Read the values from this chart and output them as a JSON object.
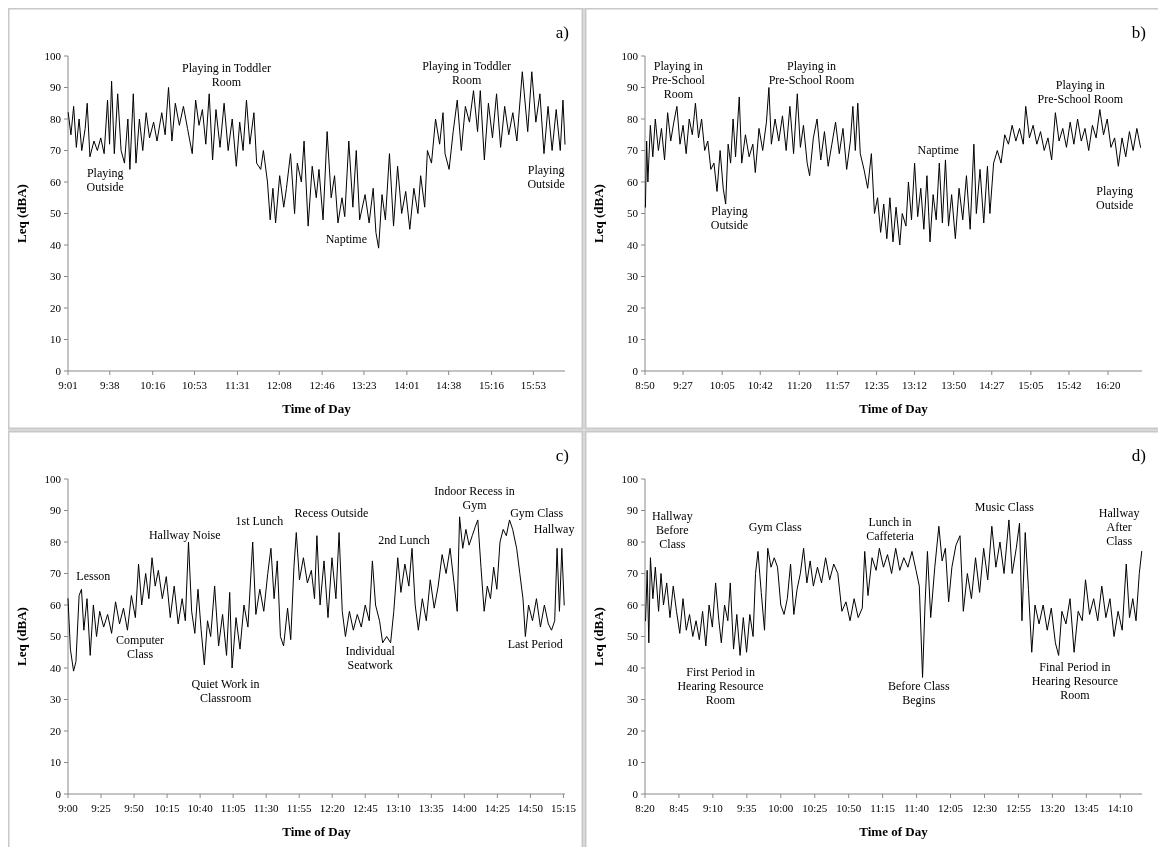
{
  "chart_data": [
    {
      "type": "line",
      "title": "a)",
      "xlabel": "Time of Day",
      "ylabel": "Leq (dBA)",
      "color": "#000000",
      "xlim": [
        9.0167,
        16.35
      ],
      "ylim": [
        0,
        100
      ],
      "yticks": [
        0,
        10,
        20,
        30,
        40,
        50,
        60,
        70,
        80,
        90,
        100
      ],
      "xticks": [
        {
          "value": 9.0167,
          "label": "9:01"
        },
        {
          "value": 9.6333,
          "label": "9:38"
        },
        {
          "value": 10.2667,
          "label": "10:16"
        },
        {
          "value": 10.8833,
          "label": "10:53"
        },
        {
          "value": 11.5167,
          "label": "11:31"
        },
        {
          "value": 12.1333,
          "label": "12:08"
        },
        {
          "value": 12.7667,
          "label": "12:46"
        },
        {
          "value": 13.3833,
          "label": "13:23"
        },
        {
          "value": 14.0167,
          "label": "14:01"
        },
        {
          "value": 14.6333,
          "label": "14:38"
        },
        {
          "value": 15.2667,
          "label": "15:16"
        },
        {
          "value": 15.8833,
          "label": "15:53"
        }
      ],
      "x": [
        9.02,
        9.06,
        9.1,
        9.14,
        9.18,
        9.22,
        9.27,
        9.3,
        9.34,
        9.4,
        9.45,
        9.5,
        9.55,
        9.6,
        9.63,
        9.66,
        9.7,
        9.75,
        9.8,
        9.85,
        9.9,
        9.93,
        9.98,
        10.02,
        10.07,
        10.12,
        10.17,
        10.22,
        10.28,
        10.33,
        10.4,
        10.45,
        10.5,
        10.55,
        10.6,
        10.66,
        10.72,
        10.78,
        10.85,
        10.9,
        10.95,
        11.0,
        11.05,
        11.1,
        11.15,
        11.2,
        11.26,
        11.32,
        11.38,
        11.44,
        11.5,
        11.55,
        11.6,
        11.65,
        11.7,
        11.76,
        11.8,
        11.86,
        11.9,
        11.96,
        12.0,
        12.04,
        12.08,
        12.14,
        12.2,
        12.24,
        12.3,
        12.36,
        12.4,
        12.46,
        12.5,
        12.56,
        12.62,
        12.68,
        12.72,
        12.78,
        12.84,
        12.9,
        12.95,
        13.0,
        13.06,
        13.1,
        13.16,
        13.22,
        13.27,
        13.32,
        13.4,
        13.46,
        13.52,
        13.56,
        13.6,
        13.65,
        13.7,
        13.76,
        13.82,
        13.88,
        13.94,
        14.0,
        14.06,
        14.12,
        14.18,
        14.22,
        14.28,
        14.32,
        14.38,
        14.44,
        14.5,
        14.55,
        14.58,
        14.64,
        14.7,
        14.76,
        14.82,
        14.88,
        14.94,
        15.0,
        15.06,
        15.1,
        15.16,
        15.22,
        15.28,
        15.34,
        15.4,
        15.46,
        15.52,
        15.58,
        15.64,
        15.72,
        15.8,
        15.86,
        15.92,
        15.98,
        16.04,
        16.1,
        16.16,
        16.22,
        16.28,
        16.32,
        16.35
      ],
      "values": [
        82,
        75,
        84,
        71,
        80,
        70,
        77,
        85,
        68,
        73,
        70,
        74,
        69,
        86,
        72,
        92,
        69,
        88,
        70,
        66,
        80,
        64,
        88,
        66,
        80,
        70,
        82,
        74,
        79,
        73,
        82,
        75,
        90,
        73,
        85,
        78,
        84,
        77,
        69,
        86,
        78,
        83,
        72,
        88,
        67,
        83,
        71,
        85,
        70,
        80,
        65,
        79,
        70,
        86,
        72,
        82,
        66,
        64,
        70,
        60,
        48,
        58,
        47,
        62,
        52,
        58,
        69,
        50,
        66,
        60,
        73,
        46,
        65,
        55,
        64,
        48,
        76,
        55,
        62,
        47,
        55,
        49,
        73,
        52,
        70,
        48,
        56,
        47,
        58,
        44,
        39,
        56,
        48,
        69,
        46,
        65,
        50,
        57,
        45,
        58,
        50,
        62,
        52,
        70,
        66,
        80,
        72,
        82,
        69,
        64,
        76,
        86,
        70,
        84,
        79,
        89,
        76,
        89,
        67,
        85,
        74,
        88,
        71,
        84,
        75,
        82,
        73,
        95,
        76,
        95,
        79,
        88,
        69,
        84,
        70,
        83,
        70,
        86,
        72
      ],
      "annotations": [
        "Playing\nOutside",
        "Playing in Toddler\nRoom",
        "Naptime",
        "Playing in Toddler\nRoom",
        "Playing\nOutside"
      ]
    },
    {
      "type": "line",
      "title": "b)",
      "xlabel": "Time of Day",
      "ylabel": "Leq (dBA)",
      "color": "#000000",
      "xlim": [
        8.8333,
        16.8833
      ],
      "ylim": [
        0,
        100
      ],
      "yticks": [
        0,
        10,
        20,
        30,
        40,
        50,
        60,
        70,
        80,
        90,
        100
      ],
      "xticks": [
        {
          "value": 8.8333,
          "label": "8:50"
        },
        {
          "value": 9.45,
          "label": "9:27"
        },
        {
          "value": 10.0833,
          "label": "10:05"
        },
        {
          "value": 10.7,
          "label": "10:42"
        },
        {
          "value": 11.3333,
          "label": "11:20"
        },
        {
          "value": 11.95,
          "label": "11:57"
        },
        {
          "value": 12.5833,
          "label": "12:35"
        },
        {
          "value": 13.2,
          "label": "13:12"
        },
        {
          "value": 13.8333,
          "label": "13:50"
        },
        {
          "value": 14.45,
          "label": "14:27"
        },
        {
          "value": 15.0833,
          "label": "15:05"
        },
        {
          "value": 15.7,
          "label": "15:42"
        },
        {
          "value": 16.3333,
          "label": "16:20"
        }
      ],
      "x": [
        8.84,
        8.86,
        8.88,
        8.92,
        8.96,
        9.0,
        9.05,
        9.1,
        9.15,
        9.2,
        9.25,
        9.3,
        9.35,
        9.4,
        9.45,
        9.5,
        9.55,
        9.6,
        9.65,
        9.7,
        9.75,
        9.8,
        9.85,
        9.9,
        9.95,
        10.0,
        10.05,
        10.1,
        10.14,
        10.18,
        10.22,
        10.26,
        10.3,
        10.36,
        10.4,
        10.46,
        10.52,
        10.58,
        10.62,
        10.68,
        10.74,
        10.8,
        10.84,
        10.88,
        10.94,
        11.0,
        11.06,
        11.12,
        11.18,
        11.24,
        11.3,
        11.35,
        11.4,
        11.46,
        11.5,
        11.56,
        11.62,
        11.68,
        11.74,
        11.8,
        11.86,
        11.92,
        11.98,
        12.04,
        12.1,
        12.16,
        12.2,
        12.24,
        12.28,
        12.32,
        12.38,
        12.44,
        12.5,
        12.55,
        12.6,
        12.65,
        12.7,
        12.75,
        12.8,
        12.85,
        12.9,
        12.96,
        13.0,
        13.06,
        13.1,
        13.15,
        13.2,
        13.25,
        13.3,
        13.35,
        13.4,
        13.45,
        13.5,
        13.55,
        13.6,
        13.65,
        13.7,
        13.75,
        13.8,
        13.86,
        13.92,
        13.98,
        14.04,
        14.1,
        14.16,
        14.2,
        14.26,
        14.32,
        14.38,
        14.42,
        14.48,
        14.54,
        14.6,
        14.66,
        14.72,
        14.78,
        14.84,
        14.9,
        14.96,
        15.0,
        15.06,
        15.12,
        15.18,
        15.24,
        15.3,
        15.36,
        15.42,
        15.48,
        15.54,
        15.6,
        15.66,
        15.72,
        15.78,
        15.84,
        15.9,
        15.96,
        16.02,
        16.08,
        16.14,
        16.2,
        16.26,
        16.32,
        16.38,
        16.44,
        16.5,
        16.56,
        16.62,
        16.68,
        16.74,
        16.8,
        16.86
      ],
      "values": [
        52,
        73,
        60,
        78,
        68,
        80,
        70,
        77,
        67,
        82,
        73,
        79,
        84,
        72,
        78,
        69,
        80,
        75,
        85,
        74,
        80,
        70,
        73,
        64,
        66,
        57,
        70,
        58,
        53,
        72,
        66,
        80,
        68,
        87,
        66,
        75,
        68,
        72,
        63,
        77,
        70,
        79,
        90,
        72,
        80,
        73,
        81,
        70,
        84,
        69,
        88,
        71,
        78,
        66,
        62,
        74,
        80,
        67,
        76,
        65,
        72,
        79,
        69,
        77,
        64,
        73,
        84,
        70,
        85,
        69,
        64,
        58,
        69,
        50,
        55,
        44,
        53,
        42,
        55,
        41,
        52,
        40,
        50,
        46,
        60,
        48,
        66,
        49,
        58,
        45,
        62,
        41,
        56,
        48,
        66,
        47,
        67,
        46,
        56,
        42,
        58,
        48,
        62,
        45,
        72,
        50,
        64,
        47,
        65,
        50,
        66,
        70,
        66,
        75,
        72,
        78,
        73,
        77,
        72,
        84,
        74,
        78,
        72,
        76,
        70,
        74,
        67,
        82,
        73,
        77,
        71,
        79,
        72,
        80,
        73,
        77,
        70,
        78,
        74,
        83,
        75,
        80,
        71,
        74,
        65,
        74,
        68,
        76,
        70,
        77,
        71
      ],
      "annotations": [
        "Playing in\nPre-School\nRoom",
        "Playing\nOutside",
        "Playing in\nPre-School Room",
        "Naptime",
        "Playing in\nPre-School Room",
        "Playing\nOutside"
      ]
    },
    {
      "type": "line",
      "title": "c)",
      "xlabel": "Time of Day",
      "ylabel": "Leq (dBA)",
      "color": "#000000",
      "xlim": [
        9,
        15.27
      ],
      "ylim": [
        0,
        100
      ],
      "yticks": [
        0,
        10,
        20,
        30,
        40,
        50,
        60,
        70,
        80,
        90,
        100
      ],
      "xticks": [
        {
          "value": 9,
          "label": "9:00"
        },
        {
          "value": 9.4167,
          "label": "9:25"
        },
        {
          "value": 9.8333,
          "label": "9:50"
        },
        {
          "value": 10.25,
          "label": "10:15"
        },
        {
          "value": 10.6667,
          "label": "10:40"
        },
        {
          "value": 11.0833,
          "label": "11:05"
        },
        {
          "value": 11.5,
          "label": "11:30"
        },
        {
          "value": 11.9167,
          "label": "11:55"
        },
        {
          "value": 12.3333,
          "label": "12:20"
        },
        {
          "value": 12.75,
          "label": "12:45"
        },
        {
          "value": 13.1667,
          "label": "13:10"
        },
        {
          "value": 13.5833,
          "label": "13:35"
        },
        {
          "value": 14,
          "label": "14:00"
        },
        {
          "value": 14.4167,
          "label": "14:25"
        },
        {
          "value": 14.8333,
          "label": "14:50"
        },
        {
          "value": 15.25,
          "label": "15:15"
        }
      ],
      "x": [
        9.0,
        9.03,
        9.07,
        9.1,
        9.14,
        9.17,
        9.2,
        9.24,
        9.28,
        9.32,
        9.36,
        9.4,
        9.45,
        9.5,
        9.55,
        9.6,
        9.65,
        9.7,
        9.75,
        9.8,
        9.85,
        9.89,
        9.93,
        9.98,
        10.02,
        10.06,
        10.1,
        10.14,
        10.19,
        10.24,
        10.29,
        10.34,
        10.39,
        10.44,
        10.48,
        10.52,
        10.56,
        10.6,
        10.64,
        10.68,
        10.72,
        10.76,
        10.8,
        10.85,
        10.9,
        10.95,
        11.0,
        11.04,
        11.07,
        11.12,
        11.17,
        11.22,
        11.27,
        11.33,
        11.37,
        11.42,
        11.47,
        11.52,
        11.56,
        11.6,
        11.64,
        11.68,
        11.72,
        11.77,
        11.81,
        11.85,
        11.88,
        11.92,
        11.97,
        12.02,
        12.07,
        12.11,
        12.14,
        12.18,
        12.23,
        12.28,
        12.33,
        12.38,
        12.42,
        12.46,
        12.5,
        12.55,
        12.6,
        12.65,
        12.7,
        12.75,
        12.8,
        12.84,
        12.88,
        12.93,
        12.97,
        13.02,
        13.07,
        13.11,
        13.16,
        13.2,
        13.25,
        13.3,
        13.34,
        13.38,
        13.42,
        13.47,
        13.52,
        13.57,
        13.62,
        13.67,
        13.72,
        13.77,
        13.82,
        13.87,
        13.91,
        13.94,
        13.98,
        14.02,
        14.06,
        14.1,
        14.14,
        14.17,
        14.21,
        14.25,
        14.29,
        14.33,
        14.37,
        14.41,
        14.45,
        14.49,
        14.53,
        14.57,
        14.61,
        14.66,
        14.7,
        14.74,
        14.77,
        14.81,
        14.86,
        14.91,
        14.96,
        15.01,
        15.06,
        15.1,
        15.14,
        15.17,
        15.2,
        15.23,
        15.26
      ],
      "values": [
        62,
        46,
        39,
        42,
        63,
        65,
        52,
        62,
        44,
        60,
        50,
        58,
        53,
        57,
        51,
        61,
        54,
        59,
        52,
        63,
        56,
        73,
        60,
        70,
        62,
        75,
        66,
        71,
        62,
        69,
        56,
        66,
        54,
        62,
        55,
        80,
        58,
        51,
        65,
        52,
        41,
        55,
        50,
        66,
        47,
        57,
        44,
        64,
        40,
        56,
        46,
        60,
        53,
        80,
        57,
        65,
        58,
        70,
        78,
        62,
        74,
        50,
        47,
        59,
        49,
        72,
        83,
        68,
        75,
        67,
        71,
        62,
        82,
        60,
        74,
        56,
        75,
        62,
        83,
        58,
        50,
        58,
        52,
        57,
        53,
        60,
        55,
        74,
        60,
        55,
        48,
        50,
        48,
        58,
        75,
        64,
        73,
        66,
        78,
        60,
        52,
        62,
        55,
        68,
        59,
        66,
        76,
        70,
        78,
        67,
        58,
        88,
        78,
        84,
        79,
        82,
        85,
        87,
        72,
        58,
        66,
        62,
        72,
        65,
        80,
        84,
        82,
        87,
        84,
        78,
        70,
        62,
        50,
        60,
        55,
        62,
        53,
        60,
        54,
        52,
        55,
        78,
        58,
        78,
        60
      ],
      "annotations": [
        "Lesson",
        "Computer\nClass",
        "Hallway Noise",
        "Quiet Work in\nClassroom",
        "1st Lunch",
        "Recess Outside",
        "Individual\nSeatwork",
        "2nd Lunch",
        "Indoor Recess in\nGym",
        "Gym Class",
        "Hallway",
        "Last Period"
      ]
    },
    {
      "type": "line",
      "title": "d)",
      "xlabel": "Time of Day",
      "ylabel": "Leq (dBA)",
      "color": "#000000",
      "xlim": [
        8.3333,
        14.4333
      ],
      "ylim": [
        0,
        100
      ],
      "yticks": [
        0,
        10,
        20,
        30,
        40,
        50,
        60,
        70,
        80,
        90,
        100
      ],
      "xticks": [
        {
          "value": 8.3333,
          "label": "8:20"
        },
        {
          "value": 8.75,
          "label": "8:45"
        },
        {
          "value": 9.1667,
          "label": "9:10"
        },
        {
          "value": 9.5833,
          "label": "9:35"
        },
        {
          "value": 10,
          "label": "10:00"
        },
        {
          "value": 10.4167,
          "label": "10:25"
        },
        {
          "value": 10.8333,
          "label": "10:50"
        },
        {
          "value": 11.25,
          "label": "11:15"
        },
        {
          "value": 11.6667,
          "label": "11:40"
        },
        {
          "value": 12.0833,
          "label": "12:05"
        },
        {
          "value": 12.5,
          "label": "12:30"
        },
        {
          "value": 12.9167,
          "label": "12:55"
        },
        {
          "value": 13.3333,
          "label": "13:20"
        },
        {
          "value": 13.75,
          "label": "13:45"
        },
        {
          "value": 14.1667,
          "label": "14:10"
        }
      ],
      "x": [
        8.34,
        8.36,
        8.38,
        8.4,
        8.43,
        8.46,
        8.5,
        8.53,
        8.56,
        8.6,
        8.64,
        8.68,
        8.72,
        8.76,
        8.8,
        8.84,
        8.88,
        8.92,
        8.96,
        9.0,
        9.04,
        9.08,
        9.12,
        9.16,
        9.2,
        9.24,
        9.27,
        9.31,
        9.35,
        9.38,
        9.42,
        9.46,
        9.5,
        9.54,
        9.58,
        9.62,
        9.66,
        9.69,
        9.72,
        9.76,
        9.8,
        9.84,
        9.88,
        9.92,
        9.96,
        10.0,
        10.04,
        10.08,
        10.12,
        10.16,
        10.2,
        10.24,
        10.28,
        10.32,
        10.36,
        10.4,
        10.45,
        10.5,
        10.55,
        10.6,
        10.65,
        10.7,
        10.75,
        10.8,
        10.85,
        10.9,
        10.95,
        11.0,
        11.03,
        11.07,
        11.12,
        11.17,
        11.21,
        11.26,
        11.31,
        11.36,
        11.41,
        11.46,
        11.51,
        11.56,
        11.61,
        11.66,
        11.7,
        11.74,
        11.77,
        11.8,
        11.84,
        11.89,
        11.94,
        11.98,
        12.02,
        12.06,
        12.1,
        12.15,
        12.2,
        12.24,
        12.29,
        12.34,
        12.39,
        12.44,
        12.49,
        12.54,
        12.59,
        12.64,
        12.69,
        12.74,
        12.8,
        12.84,
        12.89,
        12.93,
        12.96,
        13.0,
        13.04,
        13.08,
        13.12,
        13.17,
        13.22,
        13.27,
        13.32,
        13.37,
        13.41,
        13.45,
        13.5,
        13.55,
        13.6,
        13.65,
        13.7,
        13.74,
        13.79,
        13.84,
        13.89,
        13.94,
        13.99,
        14.04,
        14.09,
        14.14,
        14.19,
        14.24,
        14.28,
        14.32,
        14.36,
        14.4,
        14.43
      ],
      "values": [
        55,
        71,
        48,
        75,
        62,
        72,
        58,
        70,
        60,
        67,
        56,
        66,
        58,
        51,
        62,
        52,
        57,
        50,
        55,
        49,
        58,
        47,
        60,
        53,
        67,
        55,
        48,
        60,
        55,
        67,
        46,
        57,
        44,
        56,
        45,
        57,
        50,
        70,
        77,
        64,
        52,
        78,
        72,
        75,
        72,
        60,
        57,
        62,
        73,
        57,
        65,
        70,
        78,
        67,
        74,
        66,
        72,
        67,
        75,
        68,
        73,
        70,
        58,
        61,
        55,
        62,
        56,
        59,
        77,
        63,
        75,
        71,
        78,
        72,
        76,
        70,
        78,
        71,
        75,
        72,
        77,
        71,
        66,
        37,
        60,
        77,
        56,
        72,
        85,
        74,
        78,
        61,
        72,
        79,
        82,
        58,
        70,
        62,
        75,
        64,
        78,
        68,
        85,
        72,
        80,
        70,
        87,
        70,
        78,
        86,
        55,
        83,
        65,
        45,
        60,
        54,
        60,
        52,
        59,
        48,
        44,
        58,
        54,
        62,
        45,
        58,
        55,
        68,
        57,
        62,
        55,
        66,
        56,
        62,
        50,
        58,
        52,
        73,
        56,
        62,
        55,
        70,
        77
      ],
      "annotations": [
        "Hallway\nBefore\nClass",
        "First Period in\nHearing Resource\nRoom",
        "Gym Class",
        "Lunch in\nCaffeteria",
        "Before Class\nBegins",
        "Music Class",
        "Final Period in\nHearing Resource\nRoom",
        "Hallway\nAfter\nClass"
      ]
    }
  ]
}
